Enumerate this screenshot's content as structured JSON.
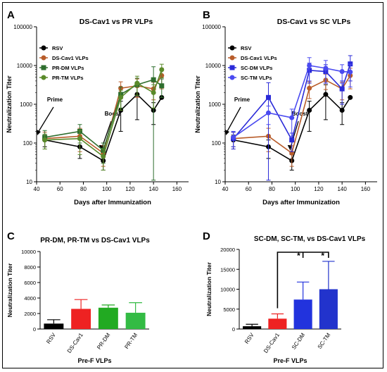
{
  "chart_data": [
    {
      "panel": "A",
      "type": "line",
      "title": "DS-Cav1 vs PR VLPs",
      "xlabel": "Days after Immunization",
      "ylabel": "Neutralization Titer",
      "y_scale": "log",
      "xlim": [
        40,
        170
      ],
      "x_ticks": [
        "40",
        "60",
        "80",
        "100",
        "120",
        "140",
        "160"
      ],
      "y_ticks": [
        "10",
        "100",
        "1000",
        "10000",
        "100000"
      ],
      "legend": "top-left",
      "annotations": [
        "Prime",
        "Boost"
      ],
      "x": [
        47,
        77,
        97,
        112,
        126,
        140,
        147
      ],
      "series": [
        {
          "name": "RSV",
          "color": "#000000",
          "marker": "circle",
          "values": [
            120,
            80,
            35,
            700,
            1800,
            700,
            1500
          ],
          "err": [
            40,
            40,
            15,
            500,
            1400,
            400,
            0
          ]
        },
        {
          "name": "DS-Cav1 VLPs",
          "color": "#b85c2a",
          "marker": "circle",
          "values": [
            130,
            150,
            55,
            2600,
            3000,
            2500,
            5500
          ],
          "err": [
            60,
            90,
            30,
            1200,
            1500,
            1200,
            3000
          ]
        },
        {
          "name": "PR-DM VLPs",
          "color": "#2e6e2e",
          "marker": "square",
          "values": [
            140,
            200,
            65,
            1800,
            3200,
            4300,
            3000
          ],
          "err": [
            70,
            100,
            35,
            1000,
            1500,
            5000,
            1500
          ]
        },
        {
          "name": "PR-TM VLPs",
          "color": "#5a8a2a",
          "marker": "circle",
          "values": [
            120,
            130,
            45,
            1500,
            3500,
            2000,
            7800
          ],
          "err": [
            50,
            80,
            25,
            800,
            1800,
            1200,
            3000
          ]
        }
      ]
    },
    {
      "panel": "B",
      "type": "line",
      "title": "DS-Cav1 vs SC VLPs",
      "xlabel": "Days after Immunization",
      "ylabel": "Neutralization Titer",
      "y_scale": "log",
      "xlim": [
        40,
        170
      ],
      "x_ticks": [
        "40",
        "60",
        "80",
        "100",
        "120",
        "140",
        "160"
      ],
      "y_ticks": [
        "10",
        "100",
        "1000",
        "10000",
        "100000"
      ],
      "legend": "top-left",
      "annotations": [
        "Prime",
        "Boost"
      ],
      "x": [
        47,
        77,
        97,
        112,
        126,
        140,
        147
      ],
      "series": [
        {
          "name": "RSV",
          "color": "#000000",
          "marker": "circle",
          "values": [
            120,
            80,
            35,
            700,
            1800,
            700,
            1500
          ],
          "err": [
            40,
            40,
            15,
            500,
            1400,
            400,
            0
          ]
        },
        {
          "name": "DS-Cav1 VLPs",
          "color": "#b85c2a",
          "marker": "circle",
          "values": [
            130,
            150,
            55,
            2600,
            4200,
            2500,
            5500
          ],
          "err": [
            60,
            90,
            30,
            1200,
            1800,
            1200,
            3000
          ]
        },
        {
          "name": "SC-DM VLPs",
          "color": "#2a2ad8",
          "marker": "square",
          "values": [
            130,
            1500,
            120,
            7500,
            7000,
            2500,
            11000
          ],
          "err": [
            60,
            2100,
            60,
            4000,
            3500,
            1500,
            7000
          ]
        },
        {
          "name": "SC-TM VLPs",
          "color": "#4a4af0",
          "marker": "circle",
          "values": [
            140,
            600,
            450,
            10000,
            8500,
            7000,
            6800
          ],
          "err": [
            60,
            300,
            300,
            6000,
            5000,
            3500,
            4000
          ]
        }
      ]
    },
    {
      "panel": "C",
      "type": "bar",
      "title": "PR-DM, PR-TM vs DS-Cav1 VLPs",
      "xlabel": "Pre-F VLPs",
      "ylabel": "Neutralization Titer",
      "ylim": [
        0,
        10000
      ],
      "y_ticks": [
        "0",
        "2000",
        "4000",
        "6000",
        "8000",
        "10000"
      ],
      "categories": [
        "RSV",
        "DS-Cav1",
        "PR-DM",
        "PR-TM"
      ],
      "values": [
        700,
        2600,
        2750,
        2100
      ],
      "err": [
        500,
        1200,
        350,
        1300
      ],
      "colors": [
        "#000000",
        "#ee2222",
        "#22aa22",
        "#33bb44"
      ]
    },
    {
      "panel": "D",
      "type": "bar",
      "title": "SC-DM, SC-TM, vs DS-Cav1 VLPs",
      "xlabel": "Pre-F VLPs",
      "ylabel": "Neutralization Titer",
      "ylim": [
        0,
        20000
      ],
      "y_ticks": [
        "0",
        "5000",
        "10000",
        "15000",
        "20000"
      ],
      "categories": [
        "RSV",
        "DS-Cav1",
        "SC-DM",
        "SC-TM"
      ],
      "values": [
        700,
        2600,
        7400,
        10000
      ],
      "err": [
        500,
        1200,
        4400,
        7000
      ],
      "colors": [
        "#000000",
        "#ee2222",
        "#2233dd",
        "#2233cc"
      ],
      "annotations": [
        "*",
        "*"
      ]
    }
  ]
}
